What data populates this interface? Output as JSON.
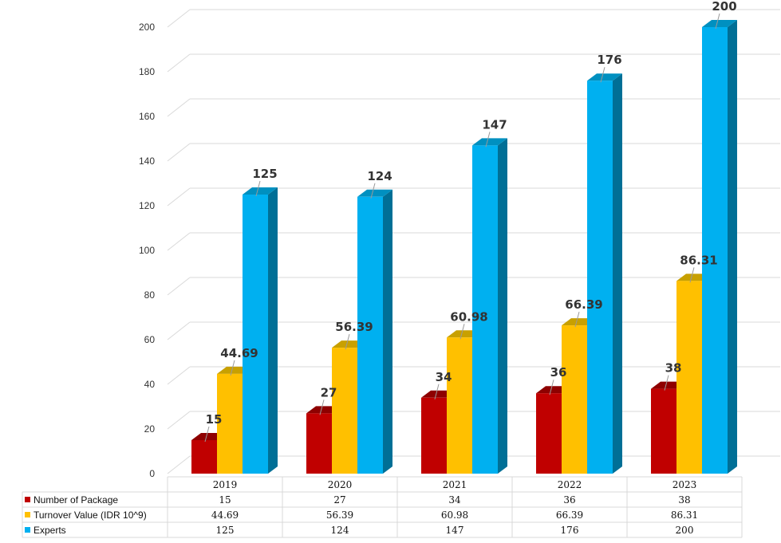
{
  "chart_data": {
    "type": "bar",
    "categories": [
      "2019",
      "2020",
      "2021",
      "2022",
      "2023"
    ],
    "series": [
      {
        "name": "Number of Package",
        "values": [
          15,
          27,
          34,
          36,
          38
        ],
        "labels": [
          "15",
          "27",
          "34",
          "36",
          "38"
        ],
        "color": "#c00000",
        "side": "#7a0000",
        "top": "#8e0000"
      },
      {
        "name": "Turnover Value (IDR 10^9)",
        "values": [
          44.69,
          56.39,
          60.98,
          66.39,
          86.31
        ],
        "labels": [
          "44.69",
          "56.39",
          "60.98",
          "66.39",
          "86.31"
        ],
        "color": "#ffc000",
        "side": "#b8860b",
        "top": "#c8a000"
      },
      {
        "name": "Experts",
        "values": [
          125,
          124,
          147,
          176,
          200
        ],
        "labels": [
          "125",
          "124",
          "147",
          "176",
          "200"
        ],
        "color": "#00b0f0",
        "side": "#006f96",
        "top": "#0090c0"
      }
    ],
    "y_ticks": [
      "0",
      "20",
      "40",
      "60",
      "80",
      "100",
      "120",
      "140",
      "160",
      "180",
      "200"
    ],
    "ylim": [
      0,
      200
    ],
    "grid": true,
    "legend": "data-table",
    "title": "",
    "xlabel": "",
    "ylabel": ""
  }
}
